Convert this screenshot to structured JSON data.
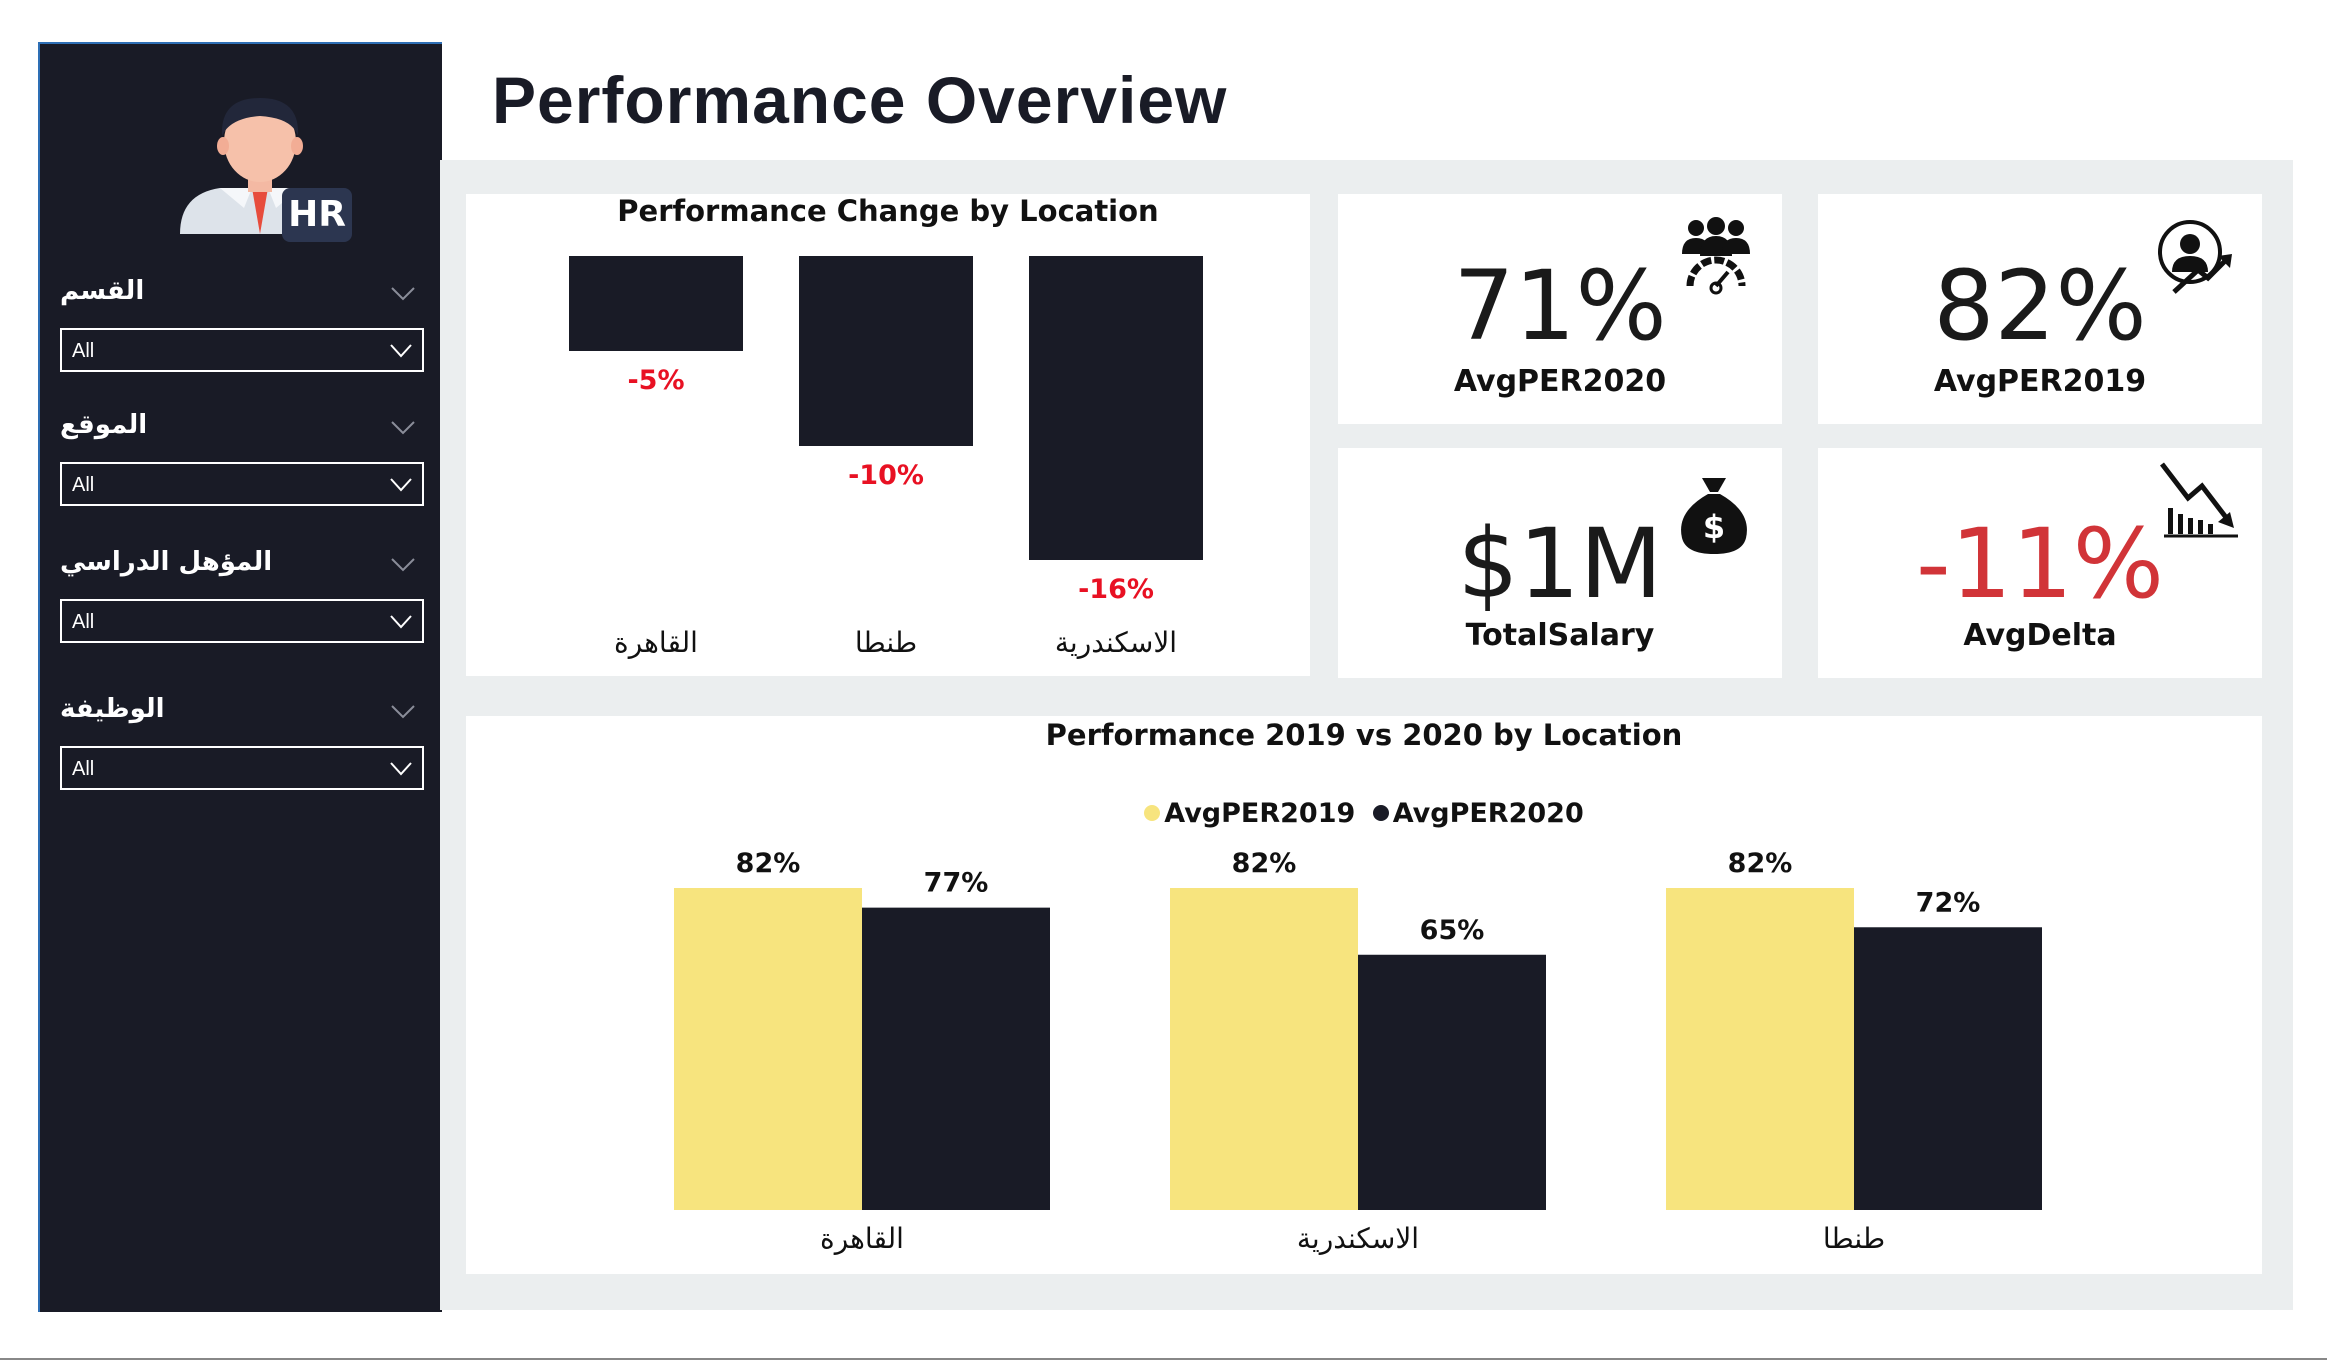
{
  "page_title": "Performance Overview",
  "sidebar": {
    "avatar_badge": "HR",
    "filters": [
      {
        "label": "القسم",
        "value": "All"
      },
      {
        "label": "الموقع",
        "value": "All"
      },
      {
        "label": "المؤهل الدراسي",
        "value": "All"
      },
      {
        "label": "الوظيفة",
        "value": "All"
      }
    ]
  },
  "kpis": {
    "avg2020": {
      "value": "71%",
      "label": "AvgPER2020",
      "icon": "team-gauge-icon"
    },
    "avg2019": {
      "value": "82%",
      "label": "AvgPER2019",
      "icon": "person-growth-icon"
    },
    "salary": {
      "value": "$1M",
      "label": "TotalSalary",
      "icon": "money-bag-icon"
    },
    "delta": {
      "value": "-11%",
      "label": "AvgDelta",
      "icon": "chart-down-icon",
      "color": "#d13438"
    }
  },
  "colors": {
    "dark": "#191b26",
    "yellow": "#f7e47e",
    "negative": "#e81123",
    "accent_border": "#2e6fb5"
  },
  "chart_data": [
    {
      "type": "bar",
      "title": "Performance Change by Location",
      "categories": [
        "القاهرة",
        "طنطا",
        "الاسكندرية"
      ],
      "values": [
        -5,
        -10,
        -16
      ],
      "value_labels": [
        "-5%",
        "-10%",
        "-16%"
      ],
      "ylim": [
        -16,
        0
      ],
      "legend": "none",
      "grid": false
    },
    {
      "type": "bar",
      "title": "Performance 2019 vs 2020 by Location",
      "categories": [
        "القاهرة",
        "الاسكندرية",
        "طنطا"
      ],
      "series": [
        {
          "name": "AvgPER2019",
          "color": "#f7e47e",
          "values": [
            82,
            82,
            82
          ],
          "labels": [
            "82%",
            "82%",
            "82%"
          ]
        },
        {
          "name": "AvgPER2020",
          "color": "#191b26",
          "values": [
            77,
            65,
            72
          ],
          "labels": [
            "77%",
            "65%",
            "72%"
          ]
        }
      ],
      "ylim": [
        0,
        82
      ],
      "legend": "top-center",
      "grid": false
    }
  ]
}
